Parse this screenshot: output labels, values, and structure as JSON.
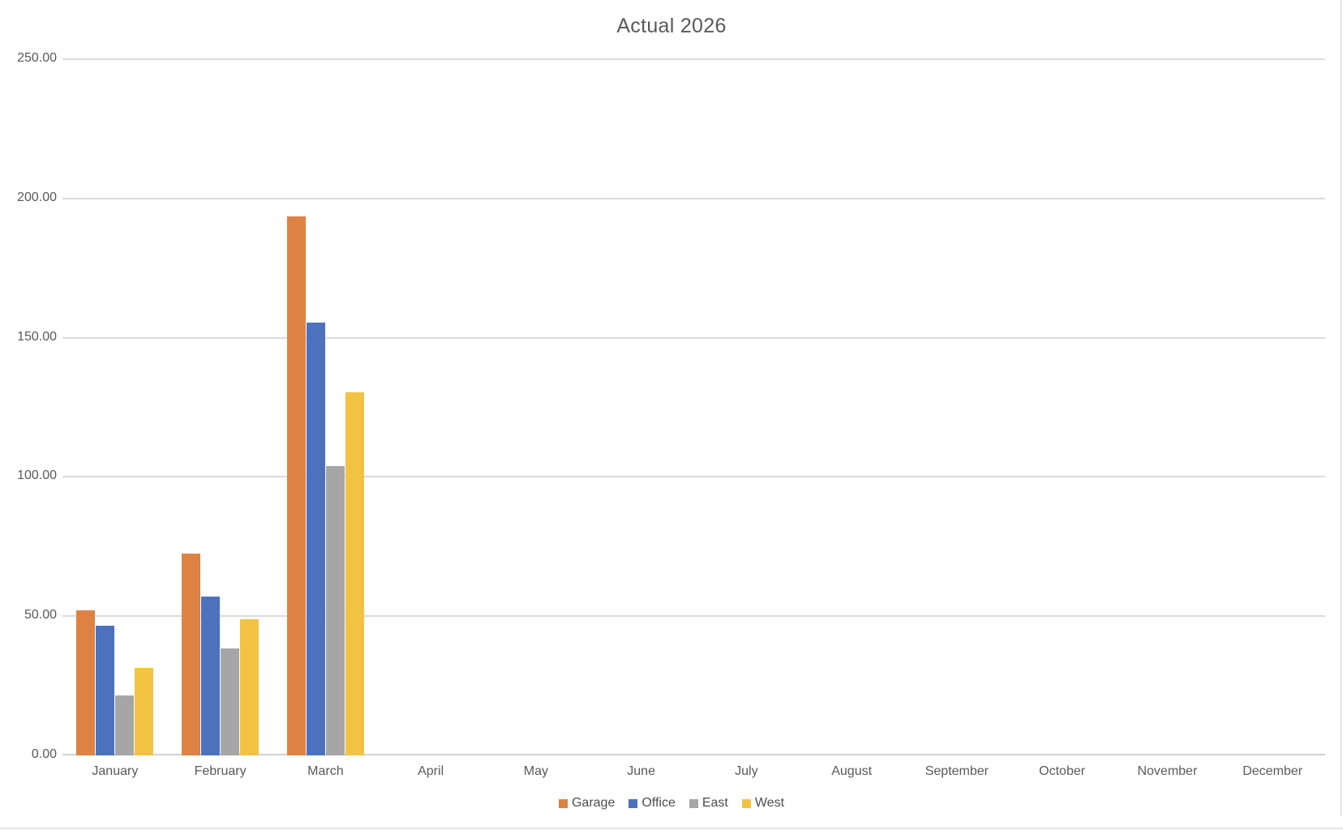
{
  "chart_data": {
    "type": "bar",
    "title": "Actual 2026",
    "categories": [
      "January",
      "February",
      "March",
      "April",
      "May",
      "June",
      "July",
      "August",
      "September",
      "October",
      "November",
      "December"
    ],
    "series": [
      {
        "name": "Garage",
        "color": "#dd8243",
        "values": [
          52,
          72.5,
          193.5,
          0,
          0,
          0,
          0,
          0,
          0,
          0,
          0,
          0
        ]
      },
      {
        "name": "Office",
        "color": "#4c72be",
        "values": [
          46.5,
          57,
          155.5,
          0,
          0,
          0,
          0,
          0,
          0,
          0,
          0,
          0
        ]
      },
      {
        "name": "East",
        "color": "#a6a6a6",
        "values": [
          21.5,
          38.5,
          104,
          0,
          0,
          0,
          0,
          0,
          0,
          0,
          0,
          0
        ]
      },
      {
        "name": "West",
        "color": "#f2c243",
        "values": [
          31.5,
          49,
          130.5,
          0,
          0,
          0,
          0,
          0,
          0,
          0,
          0,
          0
        ]
      }
    ],
    "xlabel": "",
    "ylabel": "",
    "ylim": [
      0,
      250
    ],
    "yticks": [
      0,
      50,
      100,
      150,
      200,
      250
    ],
    "ytick_labels": [
      "0.00",
      "50.00",
      "100.00",
      "150.00",
      "200.00",
      "250.00"
    ],
    "grid": true,
    "legend_position": "bottom",
    "gridline_color": "#dbdbdb",
    "text_color": "#595959"
  }
}
